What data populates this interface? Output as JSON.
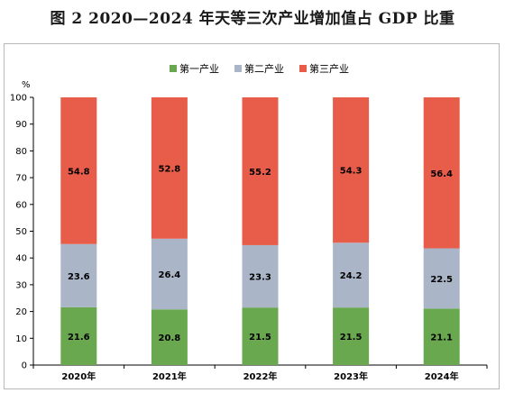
{
  "title": "图 2 2020—2024 年天等三次产业增加值占 GDP 比重",
  "chart_data": {
    "type": "bar",
    "stacked": true,
    "title": "图 2 2020—2024 年天等三次产业增加值占 GDP 比重",
    "ylabel": "%",
    "xlabel": "",
    "ylim": [
      0,
      100
    ],
    "yticks": [
      0,
      10,
      20,
      30,
      40,
      50,
      60,
      70,
      80,
      90,
      100
    ],
    "grid": false,
    "legend_position": "top-center",
    "categories": [
      "2020年",
      "2021年",
      "2022年",
      "2023年",
      "2024年"
    ],
    "series": [
      {
        "name": "第一产业",
        "color": "#6aa84f",
        "values": [
          21.6,
          20.8,
          21.5,
          21.5,
          21.1
        ]
      },
      {
        "name": "第二产业",
        "color": "#aab6c8",
        "values": [
          23.6,
          26.4,
          23.3,
          24.2,
          22.5
        ]
      },
      {
        "name": "第三产业",
        "color": "#e85d4a",
        "values": [
          54.8,
          52.8,
          55.2,
          54.3,
          56.4
        ]
      }
    ]
  }
}
